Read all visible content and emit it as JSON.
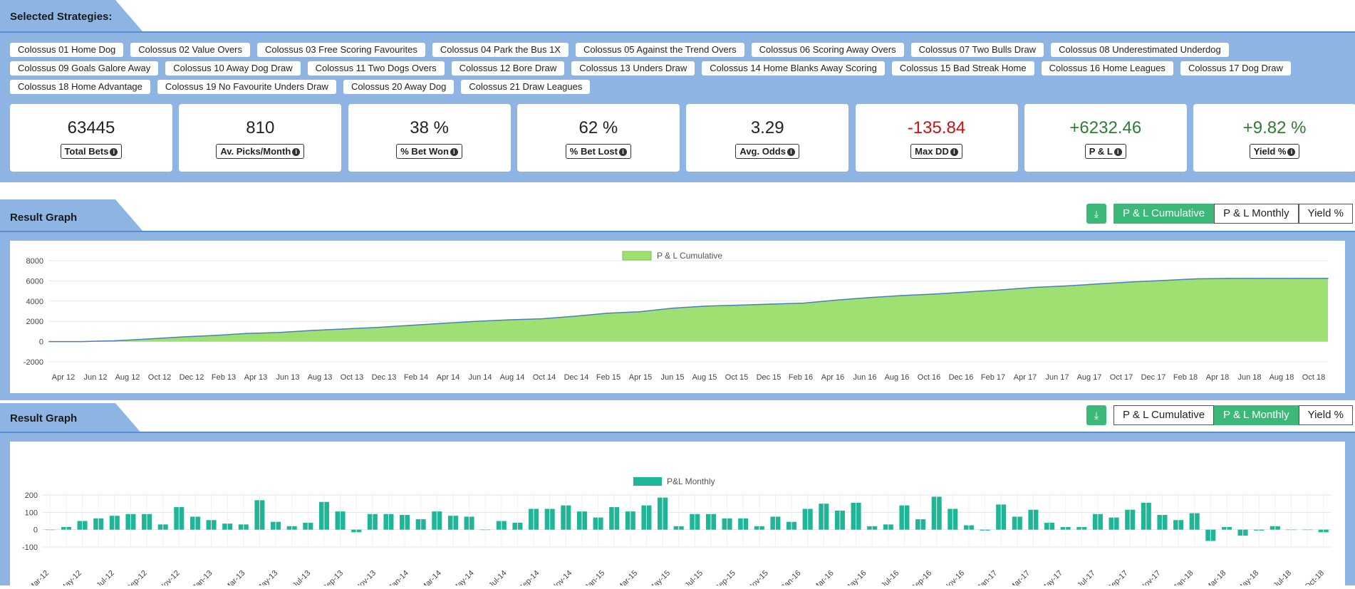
{
  "strategies_section": {
    "title": "Selected Strategies:",
    "strategies": [
      "Colossus 01 Home Dog",
      "Colossus 02 Value Overs",
      "Colossus 03 Free Scoring Favourites",
      "Colossus 04 Park the Bus 1X",
      "Colossus 05 Against the Trend Overs",
      "Colossus 06 Scoring Away Overs",
      "Colossus 07 Two Bulls Draw",
      "Colossus 08 Underestimated Underdog",
      "Colossus 09 Goals Galore Away",
      "Colossus 10 Away Dog Draw",
      "Colossus 11 Two Dogs Overs",
      "Colossus 12 Bore Draw",
      "Colossus 13 Unders Draw",
      "Colossus 14 Home Blanks Away Scoring",
      "Colossus 15 Bad Streak Home",
      "Colossus 16 Home Leagues",
      "Colossus 17 Dog Draw",
      "Colossus 18 Home Advantage",
      "Colossus 19 No Favourite Unders Draw",
      "Colossus 20 Away Dog",
      "Colossus 21 Draw Leagues"
    ]
  },
  "stats": [
    {
      "value": "63445",
      "label": "Total Bets",
      "tone": "neutral"
    },
    {
      "value": "810",
      "label": "Av. Picks/Month",
      "tone": "neutral"
    },
    {
      "value": "38 %",
      "label": "% Bet Won",
      "tone": "neutral"
    },
    {
      "value": "62 %",
      "label": "% Bet Lost",
      "tone": "neutral"
    },
    {
      "value": "3.29",
      "label": "Avg. Odds",
      "tone": "neutral"
    },
    {
      "value": "-135.84",
      "label": "Max DD",
      "tone": "neg"
    },
    {
      "value": "+6232.46",
      "label": "P & L",
      "tone": "pos"
    },
    {
      "value": "+9.82 %",
      "label": "Yield %",
      "tone": "pos"
    }
  ],
  "graph1": {
    "title": "Result Graph",
    "buttons": [
      "P & L Cumulative",
      "P & L Monthly",
      "Yield %"
    ],
    "active": 0
  },
  "graph2": {
    "title": "Result Graph",
    "buttons": [
      "P & L Cumulative",
      "P & L Monthly",
      "Yield %"
    ],
    "active": 1
  },
  "colors": {
    "accent": "#3cb878",
    "panel": "#8db4e2",
    "area_fill": "#9fe073",
    "area_line": "#4a7fbf",
    "bar": "#1fb597"
  },
  "icons": {
    "download": "download-icon",
    "info": "info-icon"
  },
  "chart_data": [
    {
      "type": "area",
      "legend": [
        "P & L Cumulative"
      ],
      "ylim": [
        -2000,
        8000
      ],
      "yticks": [
        "8000",
        "6000",
        "4000",
        "2000",
        "0",
        "-2000"
      ],
      "xticks": [
        "Apr 12",
        "Jun 12",
        "Aug 12",
        "Oct 12",
        "Dec 12",
        "Feb 13",
        "Apr 13",
        "Jun 13",
        "Aug 13",
        "Oct 13",
        "Dec 13",
        "Feb 14",
        "Apr 14",
        "Jun 14",
        "Aug 14",
        "Oct 14",
        "Dec 14",
        "Feb 15",
        "Apr 15",
        "Jun 15",
        "Aug 15",
        "Oct 15",
        "Dec 15",
        "Feb 16",
        "Apr 16",
        "Jun 16",
        "Aug 16",
        "Oct 16",
        "Dec 16",
        "Feb 17",
        "Apr 17",
        "Jun 17",
        "Aug 17",
        "Oct 17",
        "Dec 17",
        "Feb 18",
        "Apr 18",
        "Jun 18",
        "Aug 18",
        "Oct 18"
      ],
      "series": [
        {
          "name": "P & L Cumulative",
          "values": [
            0,
            0,
            80,
            250,
            450,
            600,
            800,
            900,
            1100,
            1250,
            1400,
            1600,
            1800,
            2000,
            2150,
            2250,
            2500,
            2800,
            2950,
            3300,
            3500,
            3600,
            3700,
            3800,
            4100,
            4350,
            4550,
            4700,
            4900,
            5100,
            5350,
            5500,
            5700,
            5900,
            6050,
            6200,
            6250,
            6250,
            6250,
            6250
          ]
        }
      ]
    },
    {
      "type": "bar",
      "legend": [
        "P&L Monthly"
      ],
      "ylim": [
        -100,
        200
      ],
      "yticks": [
        "200",
        "100",
        "0",
        "-100"
      ],
      "xticks": [
        "Mar-12",
        "May-12",
        "Jul-12",
        "Sep-12",
        "Nov-12",
        "Jan-13",
        "Mar-13",
        "May-13",
        "Jul-13",
        "Sep-13",
        "Nov-13",
        "Jan-14",
        "Mar-14",
        "May-14",
        "Jul-14",
        "Sep-14",
        "Nov-14",
        "Jan-15",
        "Mar-15",
        "May-15",
        "Jul-15",
        "Sep-15",
        "Nov-15",
        "Jan-16",
        "Mar-16",
        "May-16",
        "Jul-16",
        "Sep-16",
        "Nov-16",
        "Jan-17",
        "Mar-17",
        "May-17",
        "Jul-17",
        "Sep-17",
        "Nov-17",
        "Jan-18",
        "Mar-18",
        "May-18",
        "Jul-18",
        "Oct-18"
      ],
      "series": [
        {
          "name": "P&L Monthly",
          "values": [
            0,
            15,
            50,
            65,
            80,
            90,
            90,
            30,
            130,
            75,
            55,
            35,
            30,
            170,
            45,
            20,
            40,
            160,
            105,
            -15,
            90,
            90,
            85,
            60,
            105,
            80,
            75,
            0,
            50,
            40,
            120,
            120,
            140,
            105,
            70,
            130,
            105,
            140,
            185,
            20,
            90,
            90,
            65,
            65,
            20,
            75,
            45,
            120,
            150,
            110,
            155,
            20,
            30,
            140,
            60,
            190,
            120,
            25,
            -5,
            145,
            75,
            115,
            40,
            15,
            15,
            90,
            70,
            115,
            155,
            85,
            55,
            95,
            -65,
            15,
            -35,
            -5,
            20,
            0,
            0,
            -15
          ]
        }
      ]
    }
  ]
}
